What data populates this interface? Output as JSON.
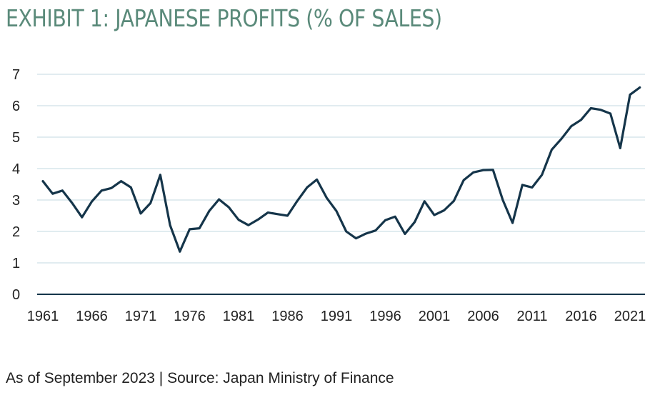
{
  "chart_data": {
    "type": "line",
    "title": "EXHIBIT 1: JAPANESE PROFITS (% OF SALES)",
    "xlabel": "",
    "ylabel": "",
    "xlim": [
      1961,
      2022
    ],
    "ylim": [
      0,
      7
    ],
    "y_ticks": [
      "0",
      "1",
      "2",
      "3",
      "4",
      "5",
      "6",
      "7"
    ],
    "x_ticks": [
      "1961",
      "1966",
      "1971",
      "1976",
      "1981",
      "1986",
      "1991",
      "1996",
      "2001",
      "2006",
      "2011",
      "2016",
      "2021"
    ],
    "grid": true,
    "legend": "none",
    "line_color": "#15354a",
    "grid_color": "#cfe0e6",
    "axis_color": "#15354a",
    "series": [
      {
        "x": [
          1961,
          1962,
          1963,
          1964,
          1965,
          1966,
          1967,
          1968,
          1969,
          1970,
          1971,
          1972,
          1973,
          1974,
          1975,
          1976,
          1977,
          1978,
          1979,
          1980,
          1981,
          1982,
          1983,
          1984,
          1985,
          1986,
          1987,
          1988,
          1989,
          1990,
          1991,
          1992,
          1993,
          1994,
          1995,
          1996,
          1997,
          1998,
          1999,
          2000,
          2001,
          2002,
          2003,
          2004,
          2005,
          2006,
          2007,
          2008,
          2009,
          2010,
          2011,
          2012,
          2013,
          2014,
          2015,
          2016,
          2017,
          2018,
          2019,
          2020,
          2021,
          2022
        ],
        "values": [
          3.6,
          3.2,
          3.3,
          2.9,
          2.45,
          2.95,
          3.3,
          3.38,
          3.6,
          3.4,
          2.57,
          2.9,
          3.8,
          2.2,
          1.36,
          2.07,
          2.1,
          2.65,
          3.02,
          2.77,
          2.37,
          2.2,
          2.38,
          2.6,
          2.55,
          2.5,
          2.97,
          3.4,
          3.65,
          3.07,
          2.65,
          2.0,
          1.78,
          1.93,
          2.03,
          2.36,
          2.47,
          1.92,
          2.3,
          2.96,
          2.52,
          2.67,
          2.97,
          3.63,
          3.88,
          3.95,
          3.96,
          3.0,
          2.27,
          3.48,
          3.4,
          3.8,
          4.6,
          4.95,
          5.35,
          5.55,
          5.92,
          5.87,
          5.75,
          4.65,
          6.35,
          6.58
        ]
      }
    ]
  },
  "source": "As of September 2023 | Source: Japan Ministry of Finance"
}
